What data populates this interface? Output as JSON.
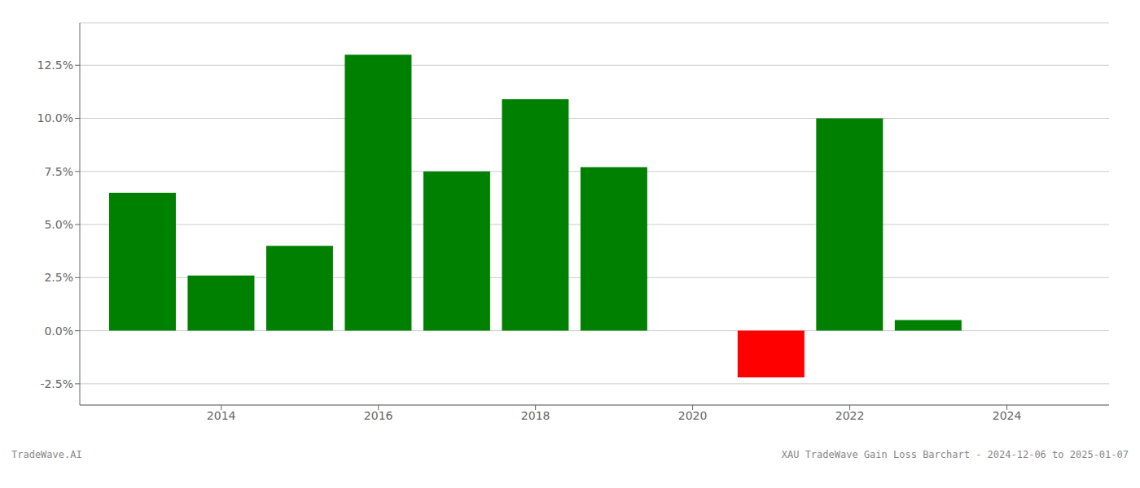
{
  "chart_data": {
    "type": "bar",
    "x": [
      2013,
      2014,
      2015,
      2016,
      2017,
      2018,
      2019,
      2021,
      2022,
      2023
    ],
    "values": [
      6.5,
      2.6,
      4.0,
      13.0,
      7.5,
      10.9,
      7.7,
      -2.2,
      10.0,
      0.5
    ],
    "colors": [
      "#008000",
      "#008000",
      "#008000",
      "#008000",
      "#008000",
      "#008000",
      "#008000",
      "#ff0000",
      "#008000",
      "#008000"
    ],
    "xlim": [
      2012.2,
      2025.3
    ],
    "xticks": [
      2014,
      2016,
      2018,
      2020,
      2022,
      2024
    ],
    "ylim": [
      -3.5,
      14.5
    ],
    "yticks": [
      {
        "value": -2.5,
        "label": "-2.5%"
      },
      {
        "value": 0.0,
        "label": "0.0%"
      },
      {
        "value": 2.5,
        "label": "2.5%"
      },
      {
        "value": 5.0,
        "label": "5.0%"
      },
      {
        "value": 7.5,
        "label": "7.5%"
      },
      {
        "value": 10.0,
        "label": "10.0%"
      },
      {
        "value": 12.5,
        "label": "12.5%"
      }
    ],
    "grid": true,
    "annotations": [
      "TradeWave.AI",
      "XAU TradeWave Gain Loss Barchart - 2024-12-06 to 2025-01-07"
    ]
  }
}
